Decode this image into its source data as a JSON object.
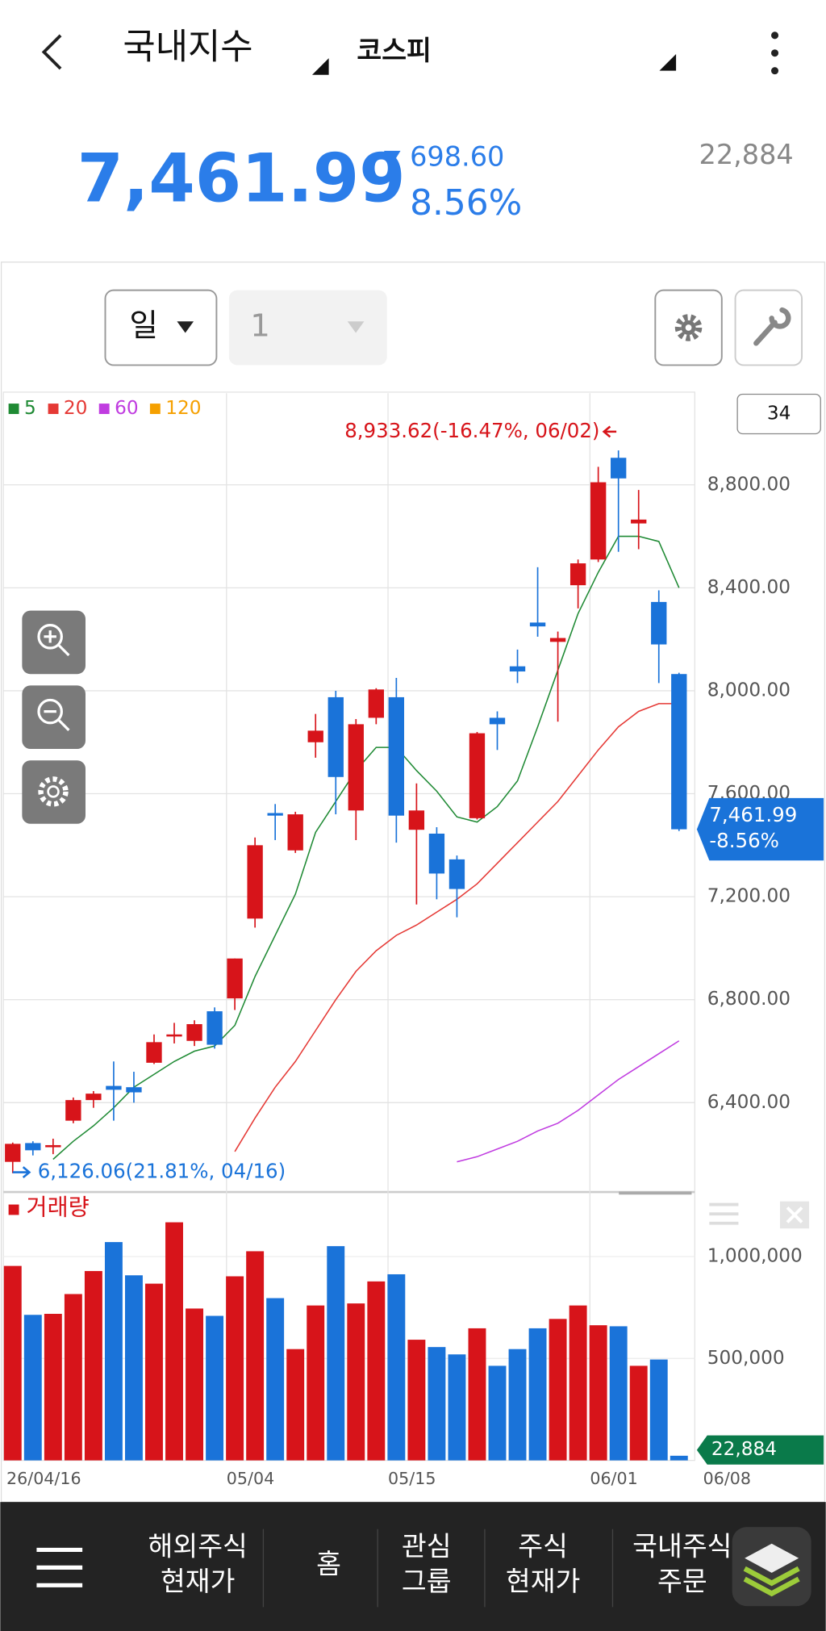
{
  "header": {
    "title": "국내지수",
    "market": "코스피"
  },
  "quote": {
    "price": "7,461.99",
    "change": "698.60",
    "change_pct": "8.56%",
    "volume": "22,884"
  },
  "toolbar": {
    "period": "일",
    "interval": "1"
  },
  "chart_data": {
    "type": "candlestick",
    "up_color": "#d7141a",
    "down_color": "#1a73d9",
    "categories": [
      "26/04/16",
      null,
      null,
      null,
      null,
      null,
      null,
      null,
      null,
      null,
      null,
      "05/04",
      null,
      null,
      null,
      null,
      null,
      null,
      null,
      "05/15",
      null,
      null,
      null,
      null,
      null,
      null,
      null,
      null,
      null,
      "06/01",
      null,
      null,
      null,
      null
    ],
    "open": [
      6170,
      6243,
      6230,
      6330,
      6410,
      6465,
      6460,
      6555,
      6660,
      6640,
      6755,
      6805,
      7115,
      7525,
      7380,
      7800,
      7975,
      7535,
      7895,
      7975,
      7460,
      7445,
      7345,
      7505,
      7895,
      8095,
      8265,
      8190,
      8410,
      8510,
      8905,
      8650,
      8345,
      8065
    ],
    "high": [
      6245,
      6250,
      6260,
      6420,
      6445,
      6560,
      6520,
      6665,
      6710,
      6720,
      6770,
      6960,
      7430,
      7560,
      7530,
      7910,
      8000,
      7890,
      8010,
      8050,
      7640,
      7470,
      7360,
      7840,
      7920,
      8160,
      8480,
      8230,
      8510,
      8870,
      8933.62,
      8780,
      8390,
      8070
    ],
    "low": [
      6126.06,
      6195,
      6200,
      6320,
      6380,
      6330,
      6400,
      6550,
      6630,
      6620,
      6610,
      6760,
      7080,
      7420,
      7370,
      7740,
      7520,
      7420,
      7870,
      7410,
      7170,
      7190,
      7120,
      7500,
      7770,
      8030,
      8210,
      7880,
      8320,
      8500,
      8540,
      8550,
      8030,
      7455
    ],
    "close": [
      6240,
      6215,
      6235,
      6410,
      6435,
      6450,
      6440,
      6635,
      6665,
      6705,
      6625,
      6960,
      7400,
      7515,
      7520,
      7845,
      7665,
      7870,
      8005,
      7515,
      7535,
      7290,
      7230,
      7835,
      7870,
      8075,
      8250,
      8205,
      8495,
      8810,
      8825,
      8665,
      8180,
      7461.99
    ],
    "ylim": [
      6077,
      9156
    ],
    "yticks": [
      {
        "value": 6400,
        "label": "6,400.00"
      },
      {
        "value": 6800,
        "label": "6,800.00"
      },
      {
        "value": 7200,
        "label": "7,200.00"
      },
      {
        "value": 7600,
        "label": "7,600.00"
      },
      {
        "value": 8000,
        "label": "8,000.00"
      },
      {
        "value": 8400,
        "label": "8,400.00"
      },
      {
        "value": 8800,
        "label": "8,800.00"
      }
    ],
    "grid": true,
    "moving_averages": [
      {
        "name": "5",
        "color": "#1f8a34",
        "values": [
          null,
          null,
          6180,
          6250,
          6310,
          6380,
          6460,
          6510,
          6560,
          6600,
          6620,
          6700,
          6890,
          7050,
          7210,
          7450,
          7570,
          7690,
          7780,
          7780,
          7690,
          7610,
          7510,
          7490,
          7550,
          7650,
          7860,
          8080,
          8300,
          8460,
          8600,
          8600,
          8580,
          8400
        ]
      },
      {
        "name": "20",
        "color": "#e53935",
        "values": [
          null,
          null,
          null,
          null,
          null,
          null,
          null,
          null,
          null,
          null,
          null,
          6210,
          6340,
          6460,
          6560,
          6680,
          6800,
          6910,
          6990,
          7050,
          7090,
          7140,
          7190,
          7250,
          7330,
          7410,
          7490,
          7570,
          7670,
          7770,
          7860,
          7920,
          7950,
          7950
        ]
      },
      {
        "name": "60",
        "color": "#c03ce0",
        "values": [
          null,
          null,
          null,
          null,
          null,
          null,
          null,
          null,
          null,
          null,
          null,
          null,
          null,
          null,
          null,
          null,
          null,
          null,
          null,
          null,
          null,
          null,
          6170,
          6190,
          6220,
          6250,
          6290,
          6320,
          6370,
          6430,
          6490,
          6540,
          6590,
          6640
        ]
      },
      {
        "name": "120",
        "color": "#f5a000",
        "values": [
          null,
          null,
          null,
          null,
          null,
          null,
          null,
          null,
          null,
          null,
          null,
          null,
          null,
          null,
          null,
          null,
          null,
          null,
          null,
          null,
          null,
          null,
          null,
          null,
          null,
          null,
          null,
          null,
          null,
          null,
          null,
          null,
          null,
          null
        ]
      }
    ],
    "candle_count": "34",
    "high_label": "8,933.62(-16.47%, 06/02)",
    "low_label": "6,126.06(21.81%, 04/16)",
    "last_price_label": "7,461.99",
    "last_change_label": "-8.56%",
    "end_date_label": "06/08",
    "volume": {
      "title": "거래량",
      "values": [
        954000,
        714000,
        719000,
        816000,
        929000,
        1071000,
        908000,
        867000,
        1168000,
        745000,
        709000,
        903000,
        1026000,
        796000,
        546000,
        760000,
        1051000,
        770000,
        878000,
        913000,
        592000,
        556000,
        520000,
        648000,
        464000,
        546000,
        648000,
        694000,
        760000,
        663000,
        658000,
        464000,
        495000,
        22884
      ],
      "ylim": [
        0,
        1296000
      ],
      "yticks": [
        {
          "value": 500000,
          "label": "500,000"
        },
        {
          "value": 1000000,
          "label": "1,000,000"
        }
      ],
      "last_label": "22,884"
    }
  },
  "nav": {
    "items": [
      [
        "해외주식",
        "현재가"
      ],
      [
        "홈"
      ],
      [
        "관심",
        "그룹"
      ],
      [
        "주식",
        "현재가"
      ],
      [
        "국내주식",
        "주문"
      ]
    ]
  }
}
